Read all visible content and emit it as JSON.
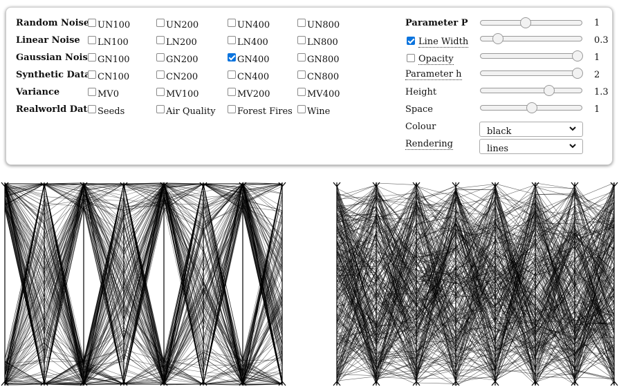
{
  "datasets": {
    "rows": [
      {
        "label": "Random Noise",
        "options": [
          {
            "label": "UN100",
            "checked": false
          },
          {
            "label": "UN200",
            "checked": false
          },
          {
            "label": "UN400",
            "checked": false
          },
          {
            "label": "UN800",
            "checked": false
          }
        ]
      },
      {
        "label": "Linear Noise",
        "options": [
          {
            "label": "LN100",
            "checked": false
          },
          {
            "label": "LN200",
            "checked": false
          },
          {
            "label": "LN400",
            "checked": false
          },
          {
            "label": "LN800",
            "checked": false
          }
        ]
      },
      {
        "label": "Gaussian Noise",
        "options": [
          {
            "label": "GN100",
            "checked": false
          },
          {
            "label": "GN200",
            "checked": false
          },
          {
            "label": "GN400",
            "checked": true
          },
          {
            "label": "GN800",
            "checked": false
          }
        ]
      },
      {
        "label": "Synthetic Data",
        "options": [
          {
            "label": "CN100",
            "checked": false
          },
          {
            "label": "CN200",
            "checked": false
          },
          {
            "label": "CN400",
            "checked": false
          },
          {
            "label": "CN800",
            "checked": false
          }
        ]
      },
      {
        "label": "Variance",
        "options": [
          {
            "label": "MV0",
            "checked": false
          },
          {
            "label": "MV100",
            "checked": false
          },
          {
            "label": "MV200",
            "checked": false
          },
          {
            "label": "MV400",
            "checked": false
          }
        ]
      },
      {
        "label": "Realworld Data",
        "options": [
          {
            "label": "Seeds",
            "checked": false
          },
          {
            "label": "Air Quality",
            "checked": false
          },
          {
            "label": "Forest Fires",
            "checked": false
          },
          {
            "label": "Wine",
            "checked": false
          }
        ]
      }
    ]
  },
  "parameters": {
    "parameter_p": {
      "label": "Parameter P",
      "value": "1",
      "level": 0.43
    },
    "line_width": {
      "label": "Line Width",
      "value": "0.3",
      "level": 0.13,
      "checked": true
    },
    "opacity": {
      "label": "Opacity",
      "value": "1",
      "level": 1.0,
      "checked": false
    },
    "parameter_h": {
      "label": "Parameter h",
      "value": "2",
      "level": 1.0
    },
    "height": {
      "label": "Height",
      "value": "1.3",
      "level": 0.69
    },
    "space": {
      "label": "Space",
      "value": "1",
      "level": 0.5
    },
    "colour": {
      "label": "Colour",
      "selected": "black"
    },
    "rendering": {
      "label": "Rendering",
      "selected": "lines"
    }
  },
  "colors": {
    "line": "#000000",
    "checkbox_checked": "#0b74de"
  },
  "icons": {
    "dropdown": "chevron-down-icon",
    "checkmark": "checkmark-icon"
  }
}
